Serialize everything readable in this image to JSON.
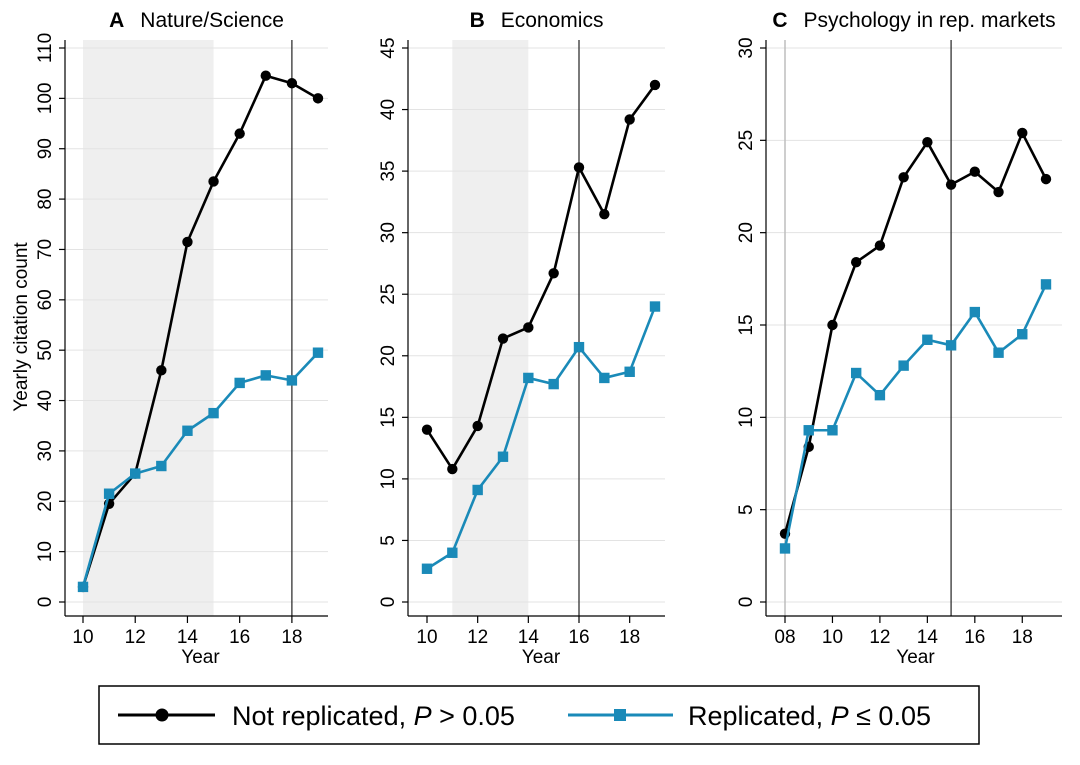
{
  "figure": {
    "ylabel": "Yearly citation count",
    "legend": {
      "placement": "bottom-center",
      "items": [
        {
          "prefix": "Not replicated, ",
          "stat": "P",
          "relation": " > 0.05",
          "color": "#000000",
          "marker": "circle"
        },
        {
          "prefix": "Replicated, ",
          "stat": "P",
          "relation": " ≤ 0.05",
          "color": "#1a8ab8",
          "marker": "square"
        }
      ]
    }
  },
  "chart_data": [
    {
      "type": "line",
      "panel": "A",
      "title": "Nature/Science",
      "xlabel": "Year",
      "ylabel": "Yearly citation count",
      "xlim": [
        10,
        19
      ],
      "ylim": [
        0,
        110
      ],
      "xticks": [
        10,
        12,
        14,
        16,
        18
      ],
      "xtick_labels": [
        "10",
        "12",
        "14",
        "16",
        "18"
      ],
      "yticks": [
        0,
        10,
        20,
        30,
        40,
        50,
        60,
        70,
        80,
        90,
        100,
        110
      ],
      "shaded_interval": [
        10,
        15
      ],
      "vertical_line": 18,
      "grid": "horizontal",
      "series": [
        {
          "name": "Not replicated",
          "color": "#000000",
          "marker": "circle",
          "x": [
            10,
            11,
            12,
            13,
            14,
            15,
            16,
            17,
            18,
            19
          ],
          "values": [
            3,
            19.5,
            25.5,
            46,
            71.5,
            83.5,
            93,
            104.5,
            103,
            100
          ]
        },
        {
          "name": "Replicated",
          "color": "#1a8ab8",
          "marker": "square",
          "x": [
            10,
            11,
            12,
            13,
            14,
            15,
            16,
            17,
            18,
            19
          ],
          "values": [
            3,
            21.5,
            25.5,
            27,
            34,
            37.5,
            43.5,
            45,
            44,
            49.5
          ]
        }
      ]
    },
    {
      "type": "line",
      "panel": "B",
      "title": "Economics",
      "xlabel": "Year",
      "ylabel": "",
      "xlim": [
        10,
        19
      ],
      "ylim": [
        0,
        45
      ],
      "xticks": [
        10,
        12,
        14,
        16,
        18
      ],
      "xtick_labels": [
        "10",
        "12",
        "14",
        "16",
        "18"
      ],
      "yticks": [
        0,
        5,
        10,
        15,
        20,
        25,
        30,
        35,
        40,
        45
      ],
      "shaded_interval": [
        11,
        14
      ],
      "vertical_line": 16,
      "grid": "horizontal",
      "series": [
        {
          "name": "Not replicated",
          "color": "#000000",
          "marker": "circle",
          "x": [
            10,
            11,
            12,
            13,
            14,
            15,
            16,
            17,
            18,
            19
          ],
          "values": [
            14,
            10.8,
            14.3,
            21.4,
            22.3,
            26.7,
            35.3,
            31.5,
            39.2,
            42
          ]
        },
        {
          "name": "Replicated",
          "color": "#1a8ab8",
          "marker": "square",
          "x": [
            10,
            11,
            12,
            13,
            14,
            15,
            16,
            17,
            18,
            19
          ],
          "values": [
            2.7,
            4,
            9.1,
            11.8,
            18.2,
            17.7,
            20.7,
            18.2,
            18.7,
            24
          ]
        }
      ]
    },
    {
      "type": "line",
      "panel": "C",
      "title": "Psychology in rep. markets",
      "xlabel": "Year",
      "ylabel": "",
      "xlim": [
        8,
        19
      ],
      "ylim": [
        0,
        30
      ],
      "xticks": [
        8,
        10,
        12,
        14,
        16,
        18
      ],
      "xtick_labels": [
        "08",
        "10",
        "12",
        "14",
        "16",
        "18"
      ],
      "yticks": [
        0,
        5,
        10,
        15,
        20,
        25,
        30
      ],
      "shaded_interval": null,
      "vertical_line": 15,
      "grid": "horizontal",
      "series": [
        {
          "name": "Not replicated",
          "color": "#000000",
          "marker": "circle",
          "x": [
            8,
            9,
            10,
            11,
            12,
            13,
            14,
            15,
            16,
            17,
            18,
            19
          ],
          "values": [
            3.7,
            8.4,
            15,
            18.4,
            19.3,
            23,
            24.9,
            22.6,
            23.3,
            22.2,
            25.4,
            22.9
          ]
        },
        {
          "name": "Replicated",
          "color": "#1a8ab8",
          "marker": "square",
          "x": [
            8,
            9,
            10,
            11,
            12,
            13,
            14,
            15,
            16,
            17,
            18,
            19
          ],
          "values": [
            2.9,
            9.3,
            9.3,
            12.4,
            11.2,
            12.8,
            14.2,
            13.9,
            15.7,
            13.5,
            14.5,
            17.2
          ]
        }
      ]
    }
  ]
}
